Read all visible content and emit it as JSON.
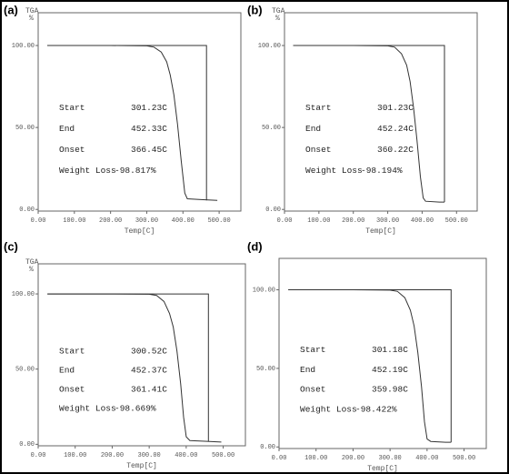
{
  "chart_data": [
    {
      "type": "line",
      "panel_label": "(a)",
      "y_label": "TGA",
      "y_unit": "%",
      "x_label": "Temp[C]",
      "xlim": [
        0,
        560
      ],
      "ylim": [
        -1,
        120
      ],
      "xticks": [
        {
          "value": 0,
          "label": "0.00"
        },
        {
          "value": 100,
          "label": "100.00"
        },
        {
          "value": 200,
          "label": "200.00"
        },
        {
          "value": 300,
          "label": "300.00"
        },
        {
          "value": 400,
          "label": "400.00"
        },
        {
          "value": 500,
          "label": "500.00"
        }
      ],
      "yticks": [
        {
          "value": 0,
          "label": "0.00"
        },
        {
          "value": 50,
          "label": "50.00"
        },
        {
          "value": 100,
          "label": "100.00"
        }
      ],
      "annotations": [
        {
          "label": "Start",
          "value": "301.23C"
        },
        {
          "label": "End",
          "value": "452.33C"
        },
        {
          "label": "Onset",
          "value": "366.45C"
        },
        {
          "label": "Weight Loss",
          "value": "-98.817%"
        }
      ],
      "series": [
        {
          "color": "#333333",
          "x": [
            25,
            100,
            200,
            300,
            320,
            340,
            355,
            365,
            375,
            385,
            395,
            405,
            412,
            450,
            495
          ],
          "values": [
            100,
            100,
            100,
            99.8,
            99,
            96,
            90,
            82,
            70,
            52,
            30,
            10,
            6.5,
            6,
            5.5
          ]
        },
        {
          "color": "#333333",
          "x": [
            25,
            465,
            465
          ],
          "values": [
            100,
            100,
            5.5
          ]
        }
      ]
    },
    {
      "type": "line",
      "panel_label": "(b)",
      "y_label": "TGA",
      "y_unit": "%",
      "x_label": "Temp[C]",
      "xlim": [
        0,
        560
      ],
      "ylim": [
        -1,
        120
      ],
      "xticks": [
        {
          "value": 0,
          "label": "0.00"
        },
        {
          "value": 100,
          "label": "100.00"
        },
        {
          "value": 200,
          "label": "200.00"
        },
        {
          "value": 300,
          "label": "300.00"
        },
        {
          "value": 400,
          "label": "400.00"
        },
        {
          "value": 500,
          "label": "500.00"
        }
      ],
      "yticks": [
        {
          "value": 0,
          "label": "0.00"
        },
        {
          "value": 50,
          "label": "50.00"
        },
        {
          "value": 100,
          "label": "100.00"
        }
      ],
      "annotations": [
        {
          "label": "Start",
          "value": "301.23C"
        },
        {
          "label": "End",
          "value": "452.24C"
        },
        {
          "label": "Onset",
          "value": "360.22C"
        },
        {
          "label": "Weight Loss",
          "value": "-98.194%"
        }
      ],
      "series": [
        {
          "color": "#333333",
          "x": [
            25,
            100,
            200,
            300,
            320,
            340,
            355,
            365,
            375,
            385,
            395,
            403,
            410,
            450,
            465
          ],
          "values": [
            100,
            100,
            100,
            99.8,
            99,
            95,
            88,
            78,
            62,
            42,
            20,
            7,
            5,
            4.5,
            4.5
          ]
        },
        {
          "color": "#333333",
          "x": [
            25,
            465,
            465
          ],
          "values": [
            100,
            100,
            4.5
          ]
        }
      ]
    },
    {
      "type": "line",
      "panel_label": "(c)",
      "y_label": "TGA",
      "y_unit": "%",
      "x_label": "Temp[C]",
      "xlim": [
        0,
        560
      ],
      "ylim": [
        -1,
        120
      ],
      "xticks": [
        {
          "value": 0,
          "label": "0.00"
        },
        {
          "value": 100,
          "label": "100.00"
        },
        {
          "value": 200,
          "label": "200.00"
        },
        {
          "value": 300,
          "label": "300.00"
        },
        {
          "value": 400,
          "label": "400.00"
        },
        {
          "value": 500,
          "label": "500.00"
        }
      ],
      "yticks": [
        {
          "value": 0,
          "label": "0.00"
        },
        {
          "value": 50,
          "label": "50.00"
        },
        {
          "value": 100,
          "label": "100.00"
        }
      ],
      "annotations": [
        {
          "label": "Start",
          "value": "300.52C"
        },
        {
          "label": "End",
          "value": "452.37C"
        },
        {
          "label": "Onset",
          "value": "361.41C"
        },
        {
          "label": "Weight Loss",
          "value": "-98.669%"
        }
      ],
      "series": [
        {
          "color": "#333333",
          "x": [
            25,
            100,
            200,
            300,
            320,
            340,
            355,
            365,
            375,
            385,
            393,
            400,
            410,
            450,
            495
          ],
          "values": [
            100,
            100,
            100,
            99.8,
            99,
            95,
            87,
            78,
            62,
            40,
            18,
            5,
            2.5,
            2,
            1.5
          ]
        },
        {
          "color": "#333333",
          "x": [
            25,
            460,
            460
          ],
          "values": [
            100,
            100,
            2
          ]
        }
      ]
    },
    {
      "type": "line",
      "panel_label": "(d)",
      "x_label": "Temp[C]",
      "xlim": [
        0,
        560
      ],
      "ylim": [
        -1,
        120
      ],
      "xticks": [
        {
          "value": 0,
          "label": "0.00"
        },
        {
          "value": 100,
          "label": "100.00"
        },
        {
          "value": 200,
          "label": "200.00"
        },
        {
          "value": 300,
          "label": "300.00"
        },
        {
          "value": 400,
          "label": "400.00"
        },
        {
          "value": 500,
          "label": "500.00"
        }
      ],
      "yticks": [
        {
          "value": 0,
          "label": "0.00"
        },
        {
          "value": 50,
          "label": "50.00"
        },
        {
          "value": 100,
          "label": "100.00"
        }
      ],
      "annotations": [
        {
          "label": "Start",
          "value": "301.18C"
        },
        {
          "label": "End",
          "value": "452.19C"
        },
        {
          "label": "Onset",
          "value": "359.98C"
        },
        {
          "label": "Weight Loss",
          "value": "-98.422%"
        }
      ],
      "series": [
        {
          "color": "#333333",
          "x": [
            25,
            100,
            200,
            300,
            320,
            340,
            355,
            365,
            375,
            385,
            393,
            400,
            410,
            450,
            465
          ],
          "values": [
            100,
            100,
            100,
            99.8,
            99,
            95,
            87,
            77,
            60,
            38,
            16,
            5,
            3.5,
            3,
            3
          ]
        },
        {
          "color": "#333333",
          "x": [
            25,
            465,
            465
          ],
          "values": [
            100,
            100,
            3
          ]
        }
      ]
    }
  ]
}
